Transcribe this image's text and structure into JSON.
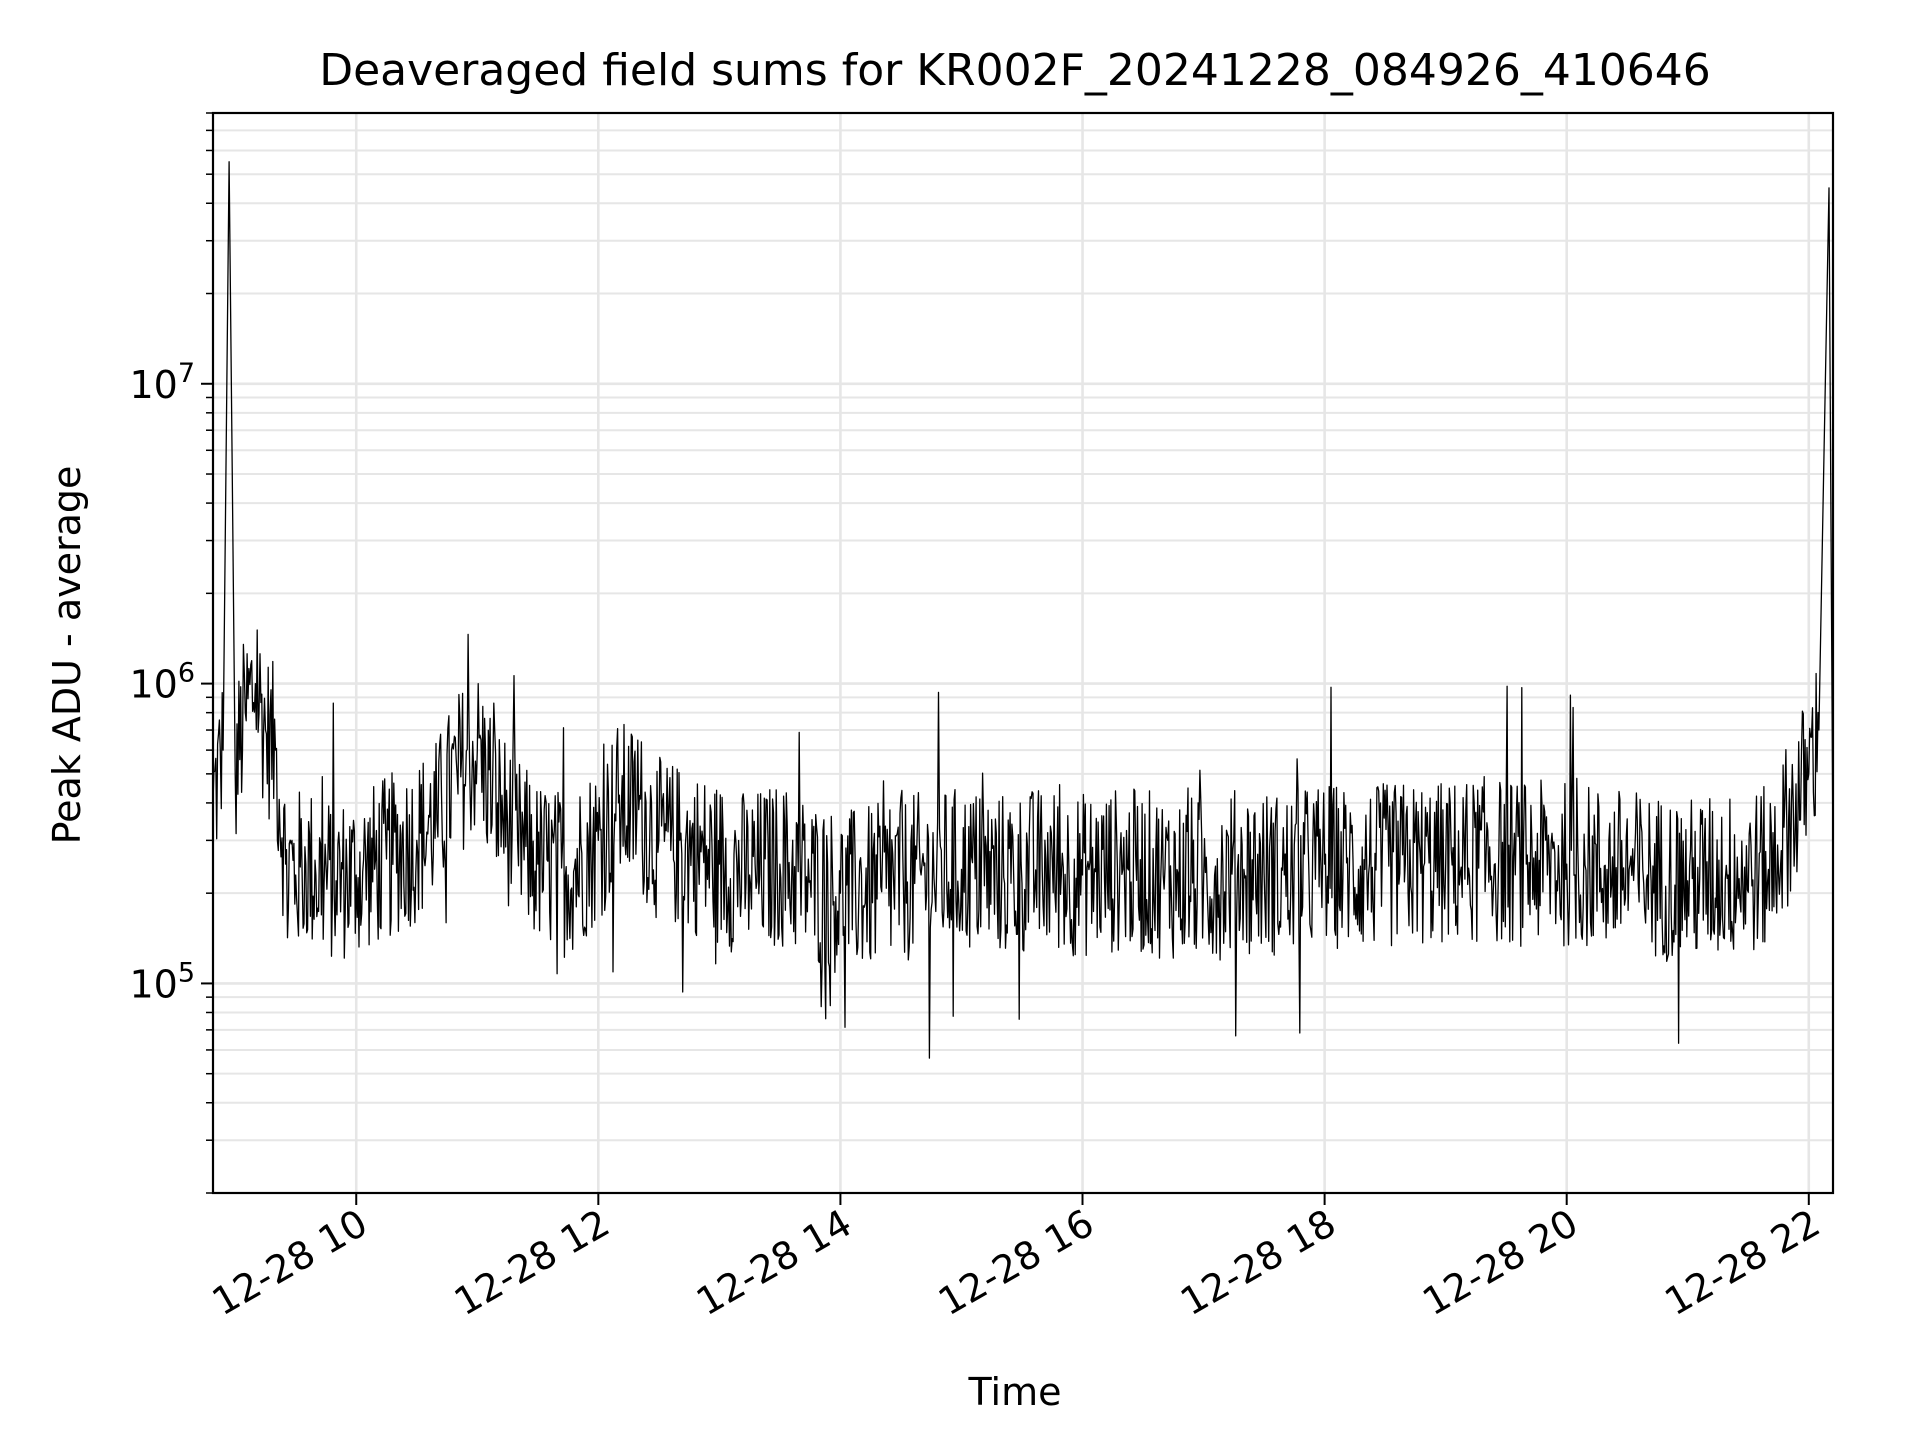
{
  "chart_data": {
    "type": "line",
    "title": "Deaveraged field sums for KR002F_20241228_084926_410646",
    "xlabel": "Time",
    "ylabel": "Peak ADU - average",
    "x_ticks": [
      "12-28 10",
      "12-28 12",
      "12-28 14",
      "12-28 16",
      "12-28 18",
      "12-28 20",
      "12-28 22"
    ],
    "y_ticks": [
      {
        "base": "10",
        "exp": "5",
        "value": 100000
      },
      {
        "base": "10",
        "exp": "6",
        "value": 1000000
      },
      {
        "base": "10",
        "exp": "7",
        "value": 10000000
      }
    ],
    "x_range": [
      "2024-12-28 08:49",
      "2024-12-28 22:12"
    ],
    "y_range": [
      20000,
      80000000
    ],
    "y_scale": "log",
    "grid": true,
    "series_color": "#000000",
    "series": [
      {
        "x": [
          "2024-12-28 08:49",
          "2024-12-28 08:54",
          "2024-12-28 08:57",
          "2024-12-28 09:00",
          "2024-12-28 09:05",
          "2024-12-28 09:10",
          "2024-12-28 09:15",
          "2024-12-28 09:20",
          "2024-12-28 09:25",
          "2024-12-28 09:30",
          "2024-12-28 09:35",
          "2024-12-28 09:40",
          "2024-12-28 09:50",
          "2024-12-28 10:00",
          "2024-12-28 10:15",
          "2024-12-28 10:30",
          "2024-12-28 10:40",
          "2024-12-28 10:50",
          "2024-12-28 11:00",
          "2024-12-28 11:10",
          "2024-12-28 11:20",
          "2024-12-28 11:30",
          "2024-12-28 11:45",
          "2024-12-28 12:00",
          "2024-12-28 12:10",
          "2024-12-28 12:20",
          "2024-12-28 12:30",
          "2024-12-28 12:45",
          "2024-12-28 13:00",
          "2024-12-28 13:15",
          "2024-12-28 13:30",
          "2024-12-28 13:45",
          "2024-12-28 14:00",
          "2024-12-28 14:20",
          "2024-12-28 14:40",
          "2024-12-28 15:00",
          "2024-12-28 15:20",
          "2024-12-28 15:40",
          "2024-12-28 16:00",
          "2024-12-28 16:20",
          "2024-12-28 16:40",
          "2024-12-28 17:00",
          "2024-12-28 17:20",
          "2024-12-28 17:40",
          "2024-12-28 18:00",
          "2024-12-28 18:20",
          "2024-12-28 18:40",
          "2024-12-28 19:00",
          "2024-12-28 19:20",
          "2024-12-28 19:40",
          "2024-12-28 20:00",
          "2024-12-28 20:20",
          "2024-12-28 20:40",
          "2024-12-28 21:00",
          "2024-12-28 21:20",
          "2024-12-28 21:40",
          "2024-12-28 21:50",
          "2024-12-28 22:00",
          "2024-12-28 22:05",
          "2024-12-28 22:10",
          "2024-12-28 22:12"
        ],
        "y": [
          400000,
          600000,
          55000000,
          500000,
          800000,
          1000000,
          700000,
          600000,
          250000,
          230000,
          250000,
          230000,
          220000,
          230000,
          260000,
          300000,
          350000,
          500000,
          600000,
          400000,
          300000,
          250000,
          230000,
          300000,
          400000,
          380000,
          300000,
          280000,
          250000,
          230000,
          250000,
          220000,
          200000,
          210000,
          230000,
          240000,
          230000,
          240000,
          230000,
          240000,
          230000,
          220000,
          240000,
          230000,
          250000,
          240000,
          250000,
          250000,
          260000,
          250000,
          250000,
          240000,
          230000,
          220000,
          230000,
          240000,
          350000,
          500000,
          700000,
          45000000,
          250000
        ]
      }
    ]
  }
}
